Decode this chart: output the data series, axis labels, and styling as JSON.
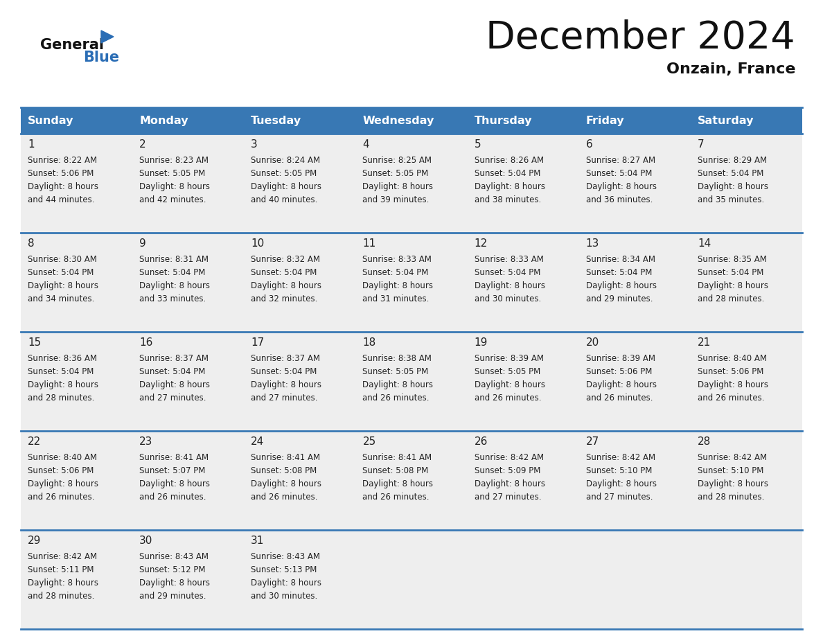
{
  "title": "December 2024",
  "subtitle": "Onzain, France",
  "header_bg": "#3878b4",
  "header_text_color": "#ffffff",
  "day_names": [
    "Sunday",
    "Monday",
    "Tuesday",
    "Wednesday",
    "Thursday",
    "Friday",
    "Saturday"
  ],
  "cell_bg": "#eeeeee",
  "row_separator_color": "#3878b4",
  "date_text_color": "#222222",
  "info_text_color": "#222222",
  "logo_black": "#111111",
  "logo_blue": "#2a6db5",
  "calendar": [
    [
      {
        "day": 1,
        "sunrise": "8:22 AM",
        "sunset": "5:06 PM",
        "daylight": "8 hours and 44 minutes."
      },
      {
        "day": 2,
        "sunrise": "8:23 AM",
        "sunset": "5:05 PM",
        "daylight": "8 hours and 42 minutes."
      },
      {
        "day": 3,
        "sunrise": "8:24 AM",
        "sunset": "5:05 PM",
        "daylight": "8 hours and 40 minutes."
      },
      {
        "day": 4,
        "sunrise": "8:25 AM",
        "sunset": "5:05 PM",
        "daylight": "8 hours and 39 minutes."
      },
      {
        "day": 5,
        "sunrise": "8:26 AM",
        "sunset": "5:04 PM",
        "daylight": "8 hours and 38 minutes."
      },
      {
        "day": 6,
        "sunrise": "8:27 AM",
        "sunset": "5:04 PM",
        "daylight": "8 hours and 36 minutes."
      },
      {
        "day": 7,
        "sunrise": "8:29 AM",
        "sunset": "5:04 PM",
        "daylight": "8 hours and 35 minutes."
      }
    ],
    [
      {
        "day": 8,
        "sunrise": "8:30 AM",
        "sunset": "5:04 PM",
        "daylight": "8 hours and 34 minutes."
      },
      {
        "day": 9,
        "sunrise": "8:31 AM",
        "sunset": "5:04 PM",
        "daylight": "8 hours and 33 minutes."
      },
      {
        "day": 10,
        "sunrise": "8:32 AM",
        "sunset": "5:04 PM",
        "daylight": "8 hours and 32 minutes."
      },
      {
        "day": 11,
        "sunrise": "8:33 AM",
        "sunset": "5:04 PM",
        "daylight": "8 hours and 31 minutes."
      },
      {
        "day": 12,
        "sunrise": "8:33 AM",
        "sunset": "5:04 PM",
        "daylight": "8 hours and 30 minutes."
      },
      {
        "day": 13,
        "sunrise": "8:34 AM",
        "sunset": "5:04 PM",
        "daylight": "8 hours and 29 minutes."
      },
      {
        "day": 14,
        "sunrise": "8:35 AM",
        "sunset": "5:04 PM",
        "daylight": "8 hours and 28 minutes."
      }
    ],
    [
      {
        "day": 15,
        "sunrise": "8:36 AM",
        "sunset": "5:04 PM",
        "daylight": "8 hours and 28 minutes."
      },
      {
        "day": 16,
        "sunrise": "8:37 AM",
        "sunset": "5:04 PM",
        "daylight": "8 hours and 27 minutes."
      },
      {
        "day": 17,
        "sunrise": "8:37 AM",
        "sunset": "5:04 PM",
        "daylight": "8 hours and 27 minutes."
      },
      {
        "day": 18,
        "sunrise": "8:38 AM",
        "sunset": "5:05 PM",
        "daylight": "8 hours and 26 minutes."
      },
      {
        "day": 19,
        "sunrise": "8:39 AM",
        "sunset": "5:05 PM",
        "daylight": "8 hours and 26 minutes."
      },
      {
        "day": 20,
        "sunrise": "8:39 AM",
        "sunset": "5:06 PM",
        "daylight": "8 hours and 26 minutes."
      },
      {
        "day": 21,
        "sunrise": "8:40 AM",
        "sunset": "5:06 PM",
        "daylight": "8 hours and 26 minutes."
      }
    ],
    [
      {
        "day": 22,
        "sunrise": "8:40 AM",
        "sunset": "5:06 PM",
        "daylight": "8 hours and 26 minutes."
      },
      {
        "day": 23,
        "sunrise": "8:41 AM",
        "sunset": "5:07 PM",
        "daylight": "8 hours and 26 minutes."
      },
      {
        "day": 24,
        "sunrise": "8:41 AM",
        "sunset": "5:08 PM",
        "daylight": "8 hours and 26 minutes."
      },
      {
        "day": 25,
        "sunrise": "8:41 AM",
        "sunset": "5:08 PM",
        "daylight": "8 hours and 26 minutes."
      },
      {
        "day": 26,
        "sunrise": "8:42 AM",
        "sunset": "5:09 PM",
        "daylight": "8 hours and 27 minutes."
      },
      {
        "day": 27,
        "sunrise": "8:42 AM",
        "sunset": "5:10 PM",
        "daylight": "8 hours and 27 minutes."
      },
      {
        "day": 28,
        "sunrise": "8:42 AM",
        "sunset": "5:10 PM",
        "daylight": "8 hours and 28 minutes."
      }
    ],
    [
      {
        "day": 29,
        "sunrise": "8:42 AM",
        "sunset": "5:11 PM",
        "daylight": "8 hours and 28 minutes."
      },
      {
        "day": 30,
        "sunrise": "8:43 AM",
        "sunset": "5:12 PM",
        "daylight": "8 hours and 29 minutes."
      },
      {
        "day": 31,
        "sunrise": "8:43 AM",
        "sunset": "5:13 PM",
        "daylight": "8 hours and 30 minutes."
      },
      null,
      null,
      null,
      null
    ]
  ]
}
